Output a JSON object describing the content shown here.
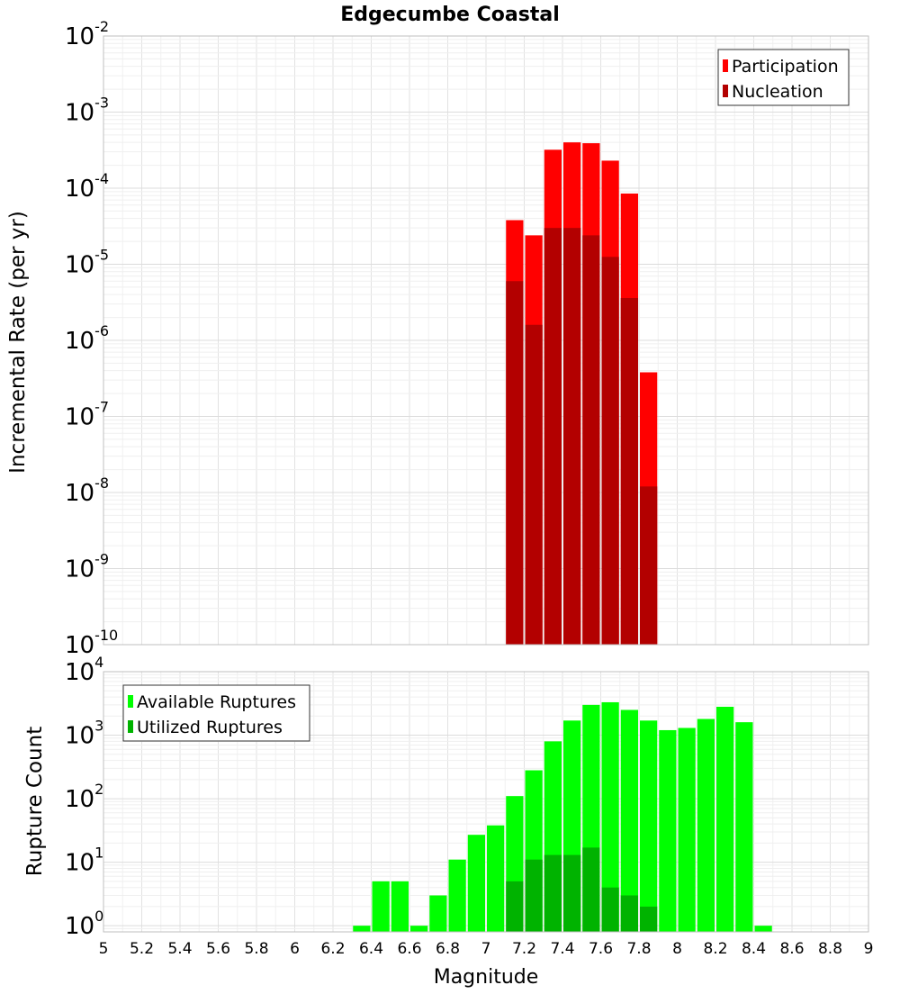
{
  "chart_data": [
    {
      "type": "bar",
      "title": "Edgecumbe Coastal",
      "ylabel": "Incremental Rate (per yr)",
      "yscale": "log",
      "ylim": [
        1e-10,
        0.01
      ],
      "xlim": [
        5,
        9
      ],
      "bin_width": 0.1,
      "grid": true,
      "legend_position": "top-right",
      "series": [
        {
          "name": "Participation",
          "color": "#ff0000",
          "x": [
            7.15,
            7.25,
            7.35,
            7.45,
            7.55,
            7.65,
            7.75,
            7.85
          ],
          "values": [
            3.8e-05,
            2.4e-05,
            0.00032,
            0.0004,
            0.00039,
            0.00023,
            8.5e-05,
            3.8e-07
          ]
        },
        {
          "name": "Nucleation",
          "color": "#b30000",
          "x": [
            7.15,
            7.25,
            7.35,
            7.45,
            7.55,
            7.65,
            7.75,
            7.85
          ],
          "values": [
            6e-06,
            1.6e-06,
            3e-05,
            3e-05,
            2.4e-05,
            1.25e-05,
            3.6e-06,
            1.2e-08
          ]
        }
      ]
    },
    {
      "type": "bar",
      "xlabel": "Magnitude",
      "ylabel": "Rupture Count",
      "yscale": "log",
      "ylim": [
        0.8,
        10000
      ],
      "xlim": [
        5,
        9
      ],
      "bin_width": 0.1,
      "grid": true,
      "legend_position": "top-left",
      "xticks": [
        "5",
        "5.2",
        "5.4",
        "5.6",
        "5.8",
        "6",
        "6.2",
        "6.4",
        "6.6",
        "6.8",
        "7",
        "7.2",
        "7.4",
        "7.6",
        "7.8",
        "8",
        "8.2",
        "8.4",
        "8.6",
        "8.8",
        "9"
      ],
      "series": [
        {
          "name": "Available Ruptures",
          "color": "#00ff00",
          "x": [
            6.35,
            6.45,
            6.55,
            6.65,
            6.75,
            6.85,
            6.95,
            7.05,
            7.15,
            7.25,
            7.35,
            7.45,
            7.55,
            7.65,
            7.75,
            7.85,
            7.95,
            8.05,
            8.15,
            8.25,
            8.35,
            8.45
          ],
          "values": [
            1,
            5,
            5,
            1,
            3,
            11,
            27,
            38,
            110,
            280,
            800,
            1700,
            3000,
            3300,
            2500,
            1700,
            1200,
            1300,
            1800,
            2800,
            1600,
            1
          ]
        },
        {
          "name": "Utilized Ruptures",
          "color": "#00b300",
          "x": [
            7.15,
            7.25,
            7.35,
            7.45,
            7.55,
            7.65,
            7.75,
            7.85
          ],
          "values": [
            5,
            11,
            13,
            13,
            17,
            4,
            3,
            2
          ]
        }
      ]
    }
  ]
}
